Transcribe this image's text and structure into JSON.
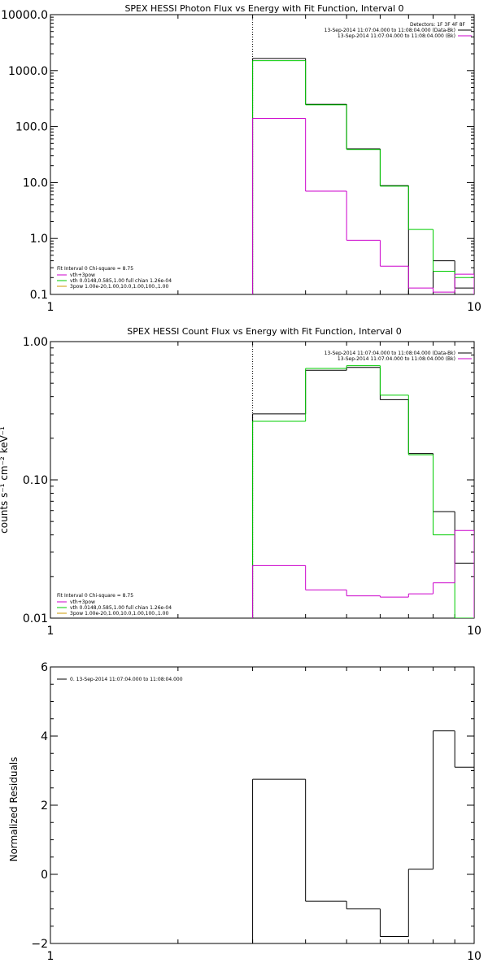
{
  "figure": {
    "panel1": {
      "title": "SPEX HESSI Photon Flux vs Energy with Fit Function, Interval 0",
      "legend_top": [
        "Detectors: 1F 3F 4F 8F",
        "13-Sep-2014 11:07:04.000 to 11:08:04.000 (Data-Bk)",
        "13-Sep-2014 11:07:04.000 to 11:08:04.000 (Bk)"
      ],
      "legend_bottom": [
        "Fit Interval 0   Chi-square = 8.75",
        "vth+3pow",
        "vth 0.0148,0.585,1.00  full chian 1.26e-04",
        "3pow 1.00e-20,1.00,10.0,1.00,100.,1.00"
      ]
    },
    "panel2": {
      "title": "SPEX HESSI Count Flux vs Energy with Fit Function, Interval 0",
      "ylabel": "counts s⁻¹ cm⁻² keV⁻¹",
      "legend_top": [
        "13-Sep-2014 11:07:04.000 to 11:08:04.000 (Data-Bk)",
        "13-Sep-2014 11:07:04.000 to 11:08:04.000 (Bk)"
      ],
      "legend_bottom": [
        "Fit Interval 0   Chi-square = 8.75",
        "vth+3pow",
        "vth 0.0148,0.585,1.00  full chian 1.26e-04",
        "3pow 1.00e-20,1.00,10.0,1.00,100.,1.00"
      ]
    },
    "panel3": {
      "ylabel": "Normalized Residuals",
      "legend": "0. 13-Sep-2014 11:07:04.000 to 11:08:04.000"
    }
  },
  "chart_data": [
    {
      "type": "line",
      "title": "SPEX HESSI Photon Flux vs Energy with Fit Function, Interval 0",
      "xscale": "log",
      "yscale": "log",
      "xlim": [
        1,
        10
      ],
      "ylim": [
        0.1,
        10000
      ],
      "xticks": [
        {
          "v": 1,
          "label": "1"
        },
        {
          "v": 10,
          "label": "10"
        }
      ],
      "yticks": [
        {
          "v": 0.1,
          "label": "0.1"
        },
        {
          "v": 1,
          "label": "1.0"
        },
        {
          "v": 10,
          "label": "10.0"
        },
        {
          "v": 100,
          "label": "100.0"
        },
        {
          "v": 1000,
          "label": "1000.0"
        },
        {
          "v": 10000,
          "label": "10000.0"
        }
      ],
      "vline": 3,
      "edges": [
        3,
        4,
        5,
        6,
        7,
        8,
        9,
        10
      ],
      "series": [
        {
          "role": "data",
          "color": "#000000",
          "values": [
            1650,
            250,
            40,
            8.8,
            null,
            0.4,
            0.13
          ]
        },
        {
          "role": "fit",
          "color": "#00cc00",
          "values": [
            1500,
            245,
            39,
            8.6,
            1.45,
            0.26,
            0.2
          ]
        },
        {
          "role": "background",
          "color": "#cc00cc",
          "values": [
            140,
            7,
            0.93,
            0.32,
            0.13,
            0.11,
            0.23
          ]
        }
      ],
      "legend_colors": [
        "#cc00cc",
        "#00cc00",
        "#cc9900"
      ]
    },
    {
      "type": "line",
      "title": "SPEX HESSI Count Flux vs Energy with Fit Function, Interval 0",
      "ylabel": "counts s⁻¹ cm⁻² keV⁻¹",
      "xscale": "log",
      "yscale": "log",
      "xlim": [
        1,
        10
      ],
      "ylim": [
        0.01,
        1.0
      ],
      "xticks": [
        {
          "v": 1,
          "label": "1"
        },
        {
          "v": 10,
          "label": "10"
        }
      ],
      "yticks": [
        {
          "v": 0.01,
          "label": "0.01"
        },
        {
          "v": 0.1,
          "label": "0.10"
        },
        {
          "v": 1,
          "label": "1.00"
        }
      ],
      "vline": 3,
      "edges": [
        3,
        4,
        5,
        6,
        7,
        8,
        9,
        10
      ],
      "series": [
        {
          "role": "data",
          "color": "#000000",
          "values": [
            0.3,
            0.62,
            0.65,
            0.38,
            0.155,
            0.059,
            0.025
          ]
        },
        {
          "role": "fit",
          "color": "#00cc00",
          "values": [
            0.265,
            0.64,
            0.67,
            0.41,
            0.152,
            0.04,
            0.01
          ]
        },
        {
          "role": "background",
          "color": "#cc00cc",
          "values": [
            0.024,
            0.016,
            0.0145,
            0.0142,
            0.015,
            0.018,
            0.043
          ]
        }
      ],
      "legend_colors": [
        "#cc00cc",
        "#00cc00",
        "#cc9900"
      ]
    },
    {
      "type": "line",
      "ylabel": "Normalized Residuals",
      "xscale": "log",
      "yscale": "linear",
      "xlim": [
        1,
        10
      ],
      "ylim": [
        -2,
        6
      ],
      "xticks": [
        {
          "v": 1,
          "label": "1"
        },
        {
          "v": 10,
          "label": "10"
        }
      ],
      "yticks": [
        {
          "v": -2,
          "label": "−2"
        },
        {
          "v": 0,
          "label": "0"
        },
        {
          "v": 2,
          "label": "2"
        },
        {
          "v": 4,
          "label": "4"
        },
        {
          "v": 6,
          "label": "6"
        }
      ],
      "edges": [
        3,
        4,
        5,
        6,
        7,
        8,
        9,
        10
      ],
      "series": [
        {
          "role": "residual",
          "color": "#000000",
          "values": [
            2.75,
            -0.78,
            -1.0,
            -1.8,
            0.15,
            4.15,
            3.1
          ]
        }
      ]
    }
  ]
}
